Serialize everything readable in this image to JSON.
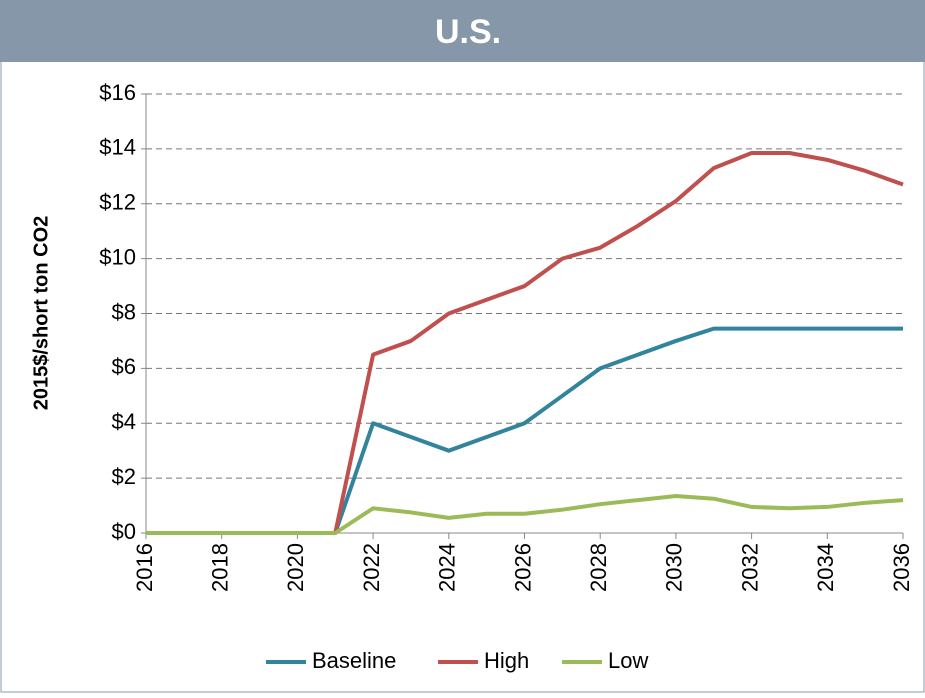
{
  "chart_data": {
    "type": "line",
    "title": "U.S.",
    "y_label": "2015$/short ton CO2",
    "x": [
      2016,
      2017,
      2018,
      2019,
      2020,
      2021,
      2022,
      2023,
      2024,
      2025,
      2026,
      2027,
      2028,
      2029,
      2030,
      2031,
      2032,
      2033,
      2034,
      2035,
      2036
    ],
    "xlim": [
      2016,
      2036
    ],
    "xticks": [
      2016,
      2018,
      2020,
      2022,
      2024,
      2026,
      2028,
      2030,
      2032,
      2034,
      2036
    ],
    "ylim": [
      0,
      16
    ],
    "yticks": [
      {
        "value": 0,
        "label": "$0"
      },
      {
        "value": 2,
        "label": "$2"
      },
      {
        "value": 4,
        "label": "$4"
      },
      {
        "value": 6,
        "label": "$6"
      },
      {
        "value": 8,
        "label": "$8"
      },
      {
        "value": 10,
        "label": "$10"
      },
      {
        "value": 12,
        "label": "$12"
      },
      {
        "value": 14,
        "label": "$14"
      },
      {
        "value": 16,
        "label": "$16"
      }
    ],
    "grid": true,
    "legend": "bottom",
    "series": [
      {
        "name": "Baseline",
        "color": "#31849b",
        "values": [
          0,
          0,
          0,
          0,
          0,
          0,
          4.0,
          3.5,
          3.0,
          3.5,
          4.0,
          5.0,
          6.0,
          6.5,
          7.0,
          7.45,
          7.45,
          7.45,
          7.45,
          7.45,
          7.45
        ]
      },
      {
        "name": "High",
        "color": "#c0504d",
        "values": [
          0,
          0,
          0,
          0,
          0,
          0,
          6.5,
          7.0,
          8.0,
          8.5,
          9.0,
          10.0,
          10.4,
          11.2,
          12.1,
          13.3,
          13.85,
          13.85,
          13.6,
          13.2,
          12.7
        ]
      },
      {
        "name": "Low",
        "color": "#9bbb59",
        "values": [
          0,
          0,
          0,
          0,
          0,
          0,
          0.9,
          0.75,
          0.55,
          0.7,
          0.7,
          0.85,
          1.05,
          1.2,
          1.35,
          1.25,
          0.95,
          0.9,
          0.95,
          1.1,
          1.2
        ]
      }
    ]
  }
}
